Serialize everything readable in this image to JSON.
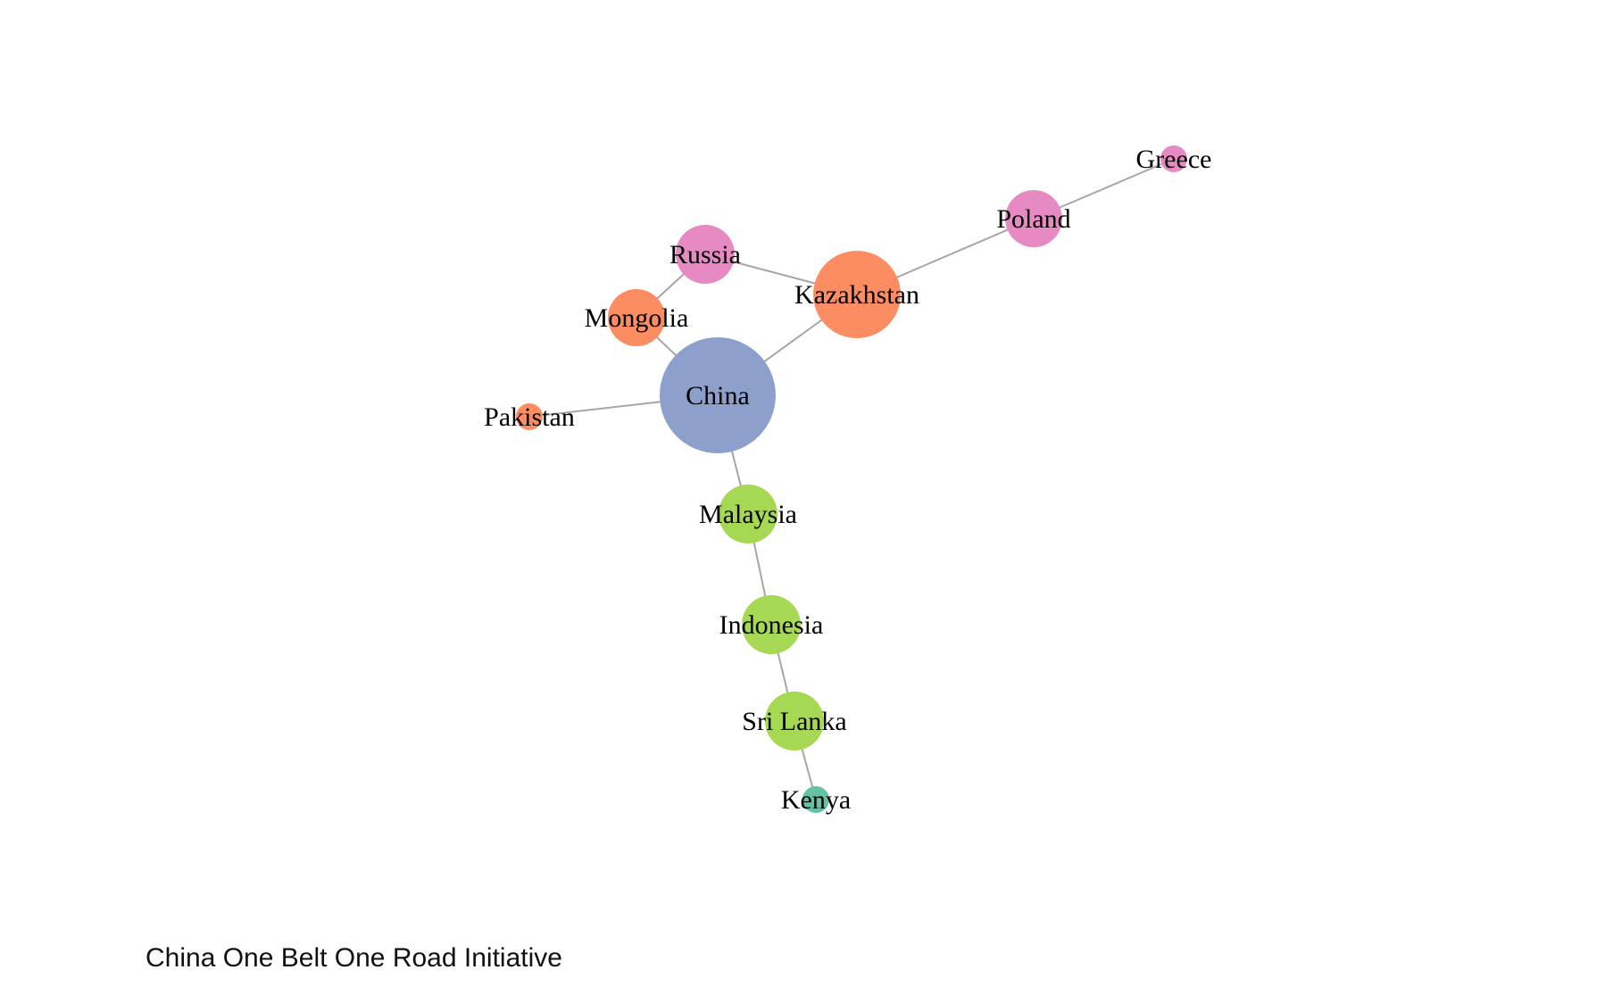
{
  "caption": "China One Belt One Road Initiative",
  "graph": {
    "colors": {
      "china": "#8da0cb",
      "orange": "#fc8d62",
      "pink": "#e78ac3",
      "green": "#a6d854",
      "teal": "#66c2a5",
      "edge": "#a6a6a6"
    },
    "nodes": [
      {
        "id": "greece",
        "label": "Greece",
        "group": "pink"
      },
      {
        "id": "poland",
        "label": "Poland",
        "group": "pink"
      },
      {
        "id": "russia",
        "label": "Russia",
        "group": "pink"
      },
      {
        "id": "kazakhstan",
        "label": "Kazakhstan",
        "group": "orange"
      },
      {
        "id": "mongolia",
        "label": "Mongolia",
        "group": "orange"
      },
      {
        "id": "china",
        "label": "China",
        "group": "china"
      },
      {
        "id": "pakistan",
        "label": "Pakistan",
        "group": "orange"
      },
      {
        "id": "malaysia",
        "label": "Malaysia",
        "group": "green"
      },
      {
        "id": "indonesia",
        "label": "Indonesia",
        "group": "green"
      },
      {
        "id": "srilanka",
        "label": "Sri Lanka",
        "group": "green"
      },
      {
        "id": "kenya",
        "label": "Kenya",
        "group": "teal"
      }
    ],
    "edges": [
      [
        "greece",
        "poland"
      ],
      [
        "poland",
        "kazakhstan"
      ],
      [
        "russia",
        "kazakhstan"
      ],
      [
        "russia",
        "mongolia"
      ],
      [
        "mongolia",
        "china"
      ],
      [
        "kazakhstan",
        "china"
      ],
      [
        "pakistan",
        "china"
      ],
      [
        "china",
        "malaysia"
      ],
      [
        "malaysia",
        "indonesia"
      ],
      [
        "indonesia",
        "srilanka"
      ],
      [
        "srilanka",
        "kenya"
      ]
    ]
  }
}
